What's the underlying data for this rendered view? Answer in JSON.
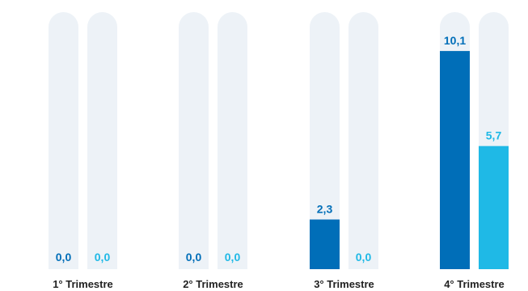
{
  "chart_data": {
    "type": "bar",
    "title": "",
    "xlabel": "",
    "ylabel": "",
    "ylim": [
      0,
      11.9
    ],
    "grid": false,
    "legend": "none",
    "categories": [
      "1° Trimestre",
      "2° Trimestre",
      "3° Trimestre",
      "4° Trimestre"
    ],
    "series": [
      {
        "values": [
          0.0,
          0.0,
          2.3,
          10.1
        ],
        "labels": [
          "0,0",
          "0,0",
          "2,3",
          "10,1"
        ],
        "color": "#006eb8"
      },
      {
        "values": [
          0.0,
          0.0,
          0.0,
          5.7
        ],
        "labels": [
          "0,0",
          "0,0",
          "0,0",
          "5,7"
        ],
        "color": "#1fb9e6"
      }
    ],
    "track_color": "#edf2f7"
  }
}
